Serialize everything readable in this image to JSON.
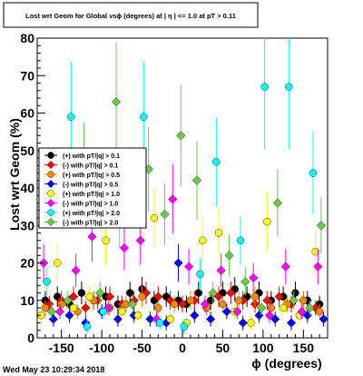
{
  "chart_data": {
    "type": "scatter",
    "title": "Lost wrt Geom for Global vsϕ (degrees) at | η | <= 1.0 at pT > 0.11",
    "xlabel": "ϕ (degrees)",
    "ylabel": "Lost wrt Geom (%)",
    "xlim": [
      -180,
      180
    ],
    "ylim": [
      0,
      80
    ],
    "x_ticks": [
      -150,
      -100,
      -50,
      0,
      50,
      100,
      150
    ],
    "x_tick_labels": [
      "-150",
      "-100",
      "-50",
      "0",
      "50",
      "100",
      "150"
    ],
    "y_ticks": [
      0,
      10,
      20,
      30,
      40,
      50,
      60,
      70,
      80
    ],
    "y_tick_labels": [
      "0",
      "10",
      "20",
      "30",
      "40",
      "50",
      "60",
      "70",
      "80"
    ],
    "grid": false,
    "legend_position": "middle-left",
    "legend_entries": [
      "(+) with pT/|q| > 0.1",
      "(-) with pT/|q| > 0.1",
      "(+) with pT/|q| > 0.5",
      "(-) with pT/|q| > 0.5",
      "(+) with pT/|q| > 1.0",
      "(-) with pT/|q| > 1.0",
      "(+) with pT/|q| > 2.0",
      "(-) with pT/|q| > 2.0"
    ],
    "series": [
      {
        "name": "(+) with pT/|q| > 0.1",
        "color": "#000000",
        "x": [
          -170,
          -155,
          -140,
          -125,
          -110,
          -95,
          -80,
          -65,
          -50,
          -35,
          -20,
          -5,
          5,
          20,
          35,
          50,
          65,
          80,
          95,
          110,
          125,
          140,
          155,
          170
        ],
        "y": [
          10,
          11,
          9,
          12,
          10,
          11,
          9,
          12,
          13,
          10,
          11,
          10,
          9,
          12,
          10,
          12,
          13,
          11,
          12,
          10,
          11,
          12,
          10,
          9
        ]
      },
      {
        "name": "(-) with pT/|q| > 0.1",
        "color": "#ff0000",
        "x": [
          -165,
          -150,
          -135,
          -120,
          -105,
          -90,
          -75,
          -60,
          -45,
          -30,
          -15,
          0,
          15,
          30,
          45,
          60,
          75,
          90,
          105,
          120,
          135,
          150,
          165
        ],
        "y": [
          9,
          10,
          11,
          8,
          10,
          11,
          9,
          10,
          12,
          11,
          10,
          9,
          10,
          8,
          11,
          12,
          10,
          9,
          10,
          11,
          9,
          10,
          8
        ]
      },
      {
        "name": "(+) with pT/|q| > 0.5",
        "color": "#ff8800",
        "x": [
          -170,
          -150,
          -130,
          -110,
          -90,
          -70,
          -50,
          -30,
          -10,
          10,
          30,
          50,
          70,
          90,
          110,
          130,
          150,
          170
        ],
        "y": [
          8,
          9,
          7,
          10,
          8,
          9,
          11,
          8,
          9,
          10,
          8,
          9,
          10,
          11,
          8,
          9,
          10,
          7
        ]
      },
      {
        "name": "(-) with pT/|q| > 0.5",
        "color": "#0000ff",
        "x": [
          -160,
          -140,
          -120,
          -100,
          -80,
          -60,
          -40,
          -20,
          -5,
          15,
          35,
          55,
          75,
          95,
          115,
          135,
          155,
          175
        ],
        "y": [
          5,
          6,
          4,
          7,
          5,
          6,
          5,
          4,
          20,
          6,
          5,
          7,
          4,
          6,
          5,
          4,
          6,
          5
        ]
      },
      {
        "name": "(+) with pT/|q| > 1.0",
        "color": "#ffff00",
        "x": [
          -175,
          -155,
          -135,
          -115,
          -95,
          -75,
          -55,
          -35,
          -15,
          5,
          25,
          45,
          65,
          85,
          105,
          125,
          145,
          165
        ],
        "y": [
          6,
          20,
          8,
          11,
          26,
          7,
          6,
          32,
          5,
          4,
          26,
          28,
          7,
          4,
          31,
          8,
          6,
          23
        ]
      },
      {
        "name": "(-) with pT/|q| > 1.0",
        "color": "#ff00ff",
        "x": [
          -172,
          -152,
          -132,
          -112,
          -92,
          -72,
          -52,
          -32,
          -12,
          8,
          28,
          48,
          68,
          88,
          108,
          128,
          148,
          168
        ],
        "y": [
          20,
          7,
          18,
          27,
          8,
          24,
          26,
          5,
          37,
          19,
          9,
          18,
          7,
          16,
          6,
          19,
          7,
          19
        ]
      },
      {
        "name": "(+) with pT/|q| > 2.0",
        "color": "#00ffff",
        "x": [
          -168,
          -138,
          -118,
          -98,
          -78,
          -48,
          -28,
          2,
          22,
          42,
          72,
          102,
          132,
          162
        ],
        "y": [
          15,
          59,
          3,
          7,
          32,
          59,
          4,
          3,
          17,
          47,
          26,
          67,
          67,
          44
        ]
      },
      {
        "name": "(-) with pT/|q| > 2.0",
        "color": "#66cc44",
        "x": [
          -162,
          -142,
          -122,
          -102,
          -82,
          -62,
          -42,
          -22,
          -2,
          18,
          38,
          58,
          78,
          98,
          118,
          138,
          158,
          172
        ],
        "y": [
          7,
          10,
          46,
          12,
          63,
          9,
          45,
          33,
          54,
          42,
          12,
          22,
          15,
          8,
          36,
          10,
          8,
          30
        ]
      }
    ]
  }
}
